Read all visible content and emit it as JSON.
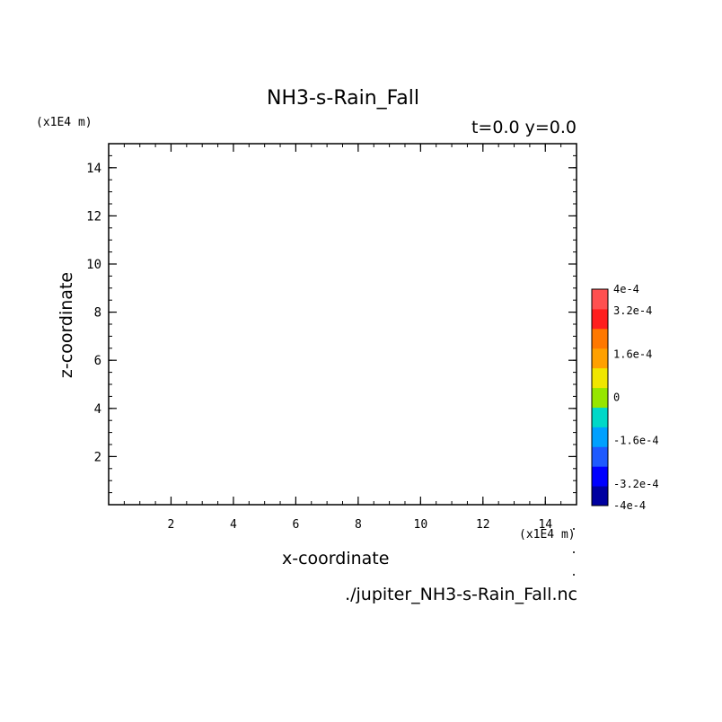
{
  "chart_data": {
    "type": "heatmap",
    "title": "NH3-s-Rain_Fall",
    "time_info": "t=0.0 y=0.0",
    "xlabel": "x-coordinate",
    "ylabel": "z-coordinate",
    "x_unit": "(x1E4 m)",
    "y_unit": "(x1E4 m)",
    "xlim": [
      0,
      15
    ],
    "ylim": [
      0,
      15
    ],
    "x_ticks": [
      2,
      4,
      6,
      8,
      10,
      12,
      14
    ],
    "y_ticks": [
      2,
      4,
      6,
      8,
      10,
      12,
      14
    ],
    "values": [],
    "colorbar": {
      "range": [
        -0.0004,
        0.0004
      ],
      "tick_labels": [
        {
          "value": 0.0004,
          "label": "4e-4"
        },
        {
          "value": 0.00032,
          "label": "3.2e-4"
        },
        {
          "value": 0.00016,
          "label": "1.6e-4"
        },
        {
          "value": 0,
          "label": "0"
        },
        {
          "value": -0.00016,
          "label": "-1.6e-4"
        },
        {
          "value": -0.00032,
          "label": "-3.2e-4"
        },
        {
          "value": -0.0004,
          "label": "-4e-4"
        }
      ],
      "colors": [
        "#0000a0",
        "#0000ff",
        "#1e5aff",
        "#00a0ff",
        "#00d8c8",
        "#96e600",
        "#f0e600",
        "#ffa000",
        "#ff7800",
        "#ff1e1e",
        "#ff5050"
      ]
    },
    "source_file": "./jupiter_NH3-s-Rain_Fall.nc"
  }
}
